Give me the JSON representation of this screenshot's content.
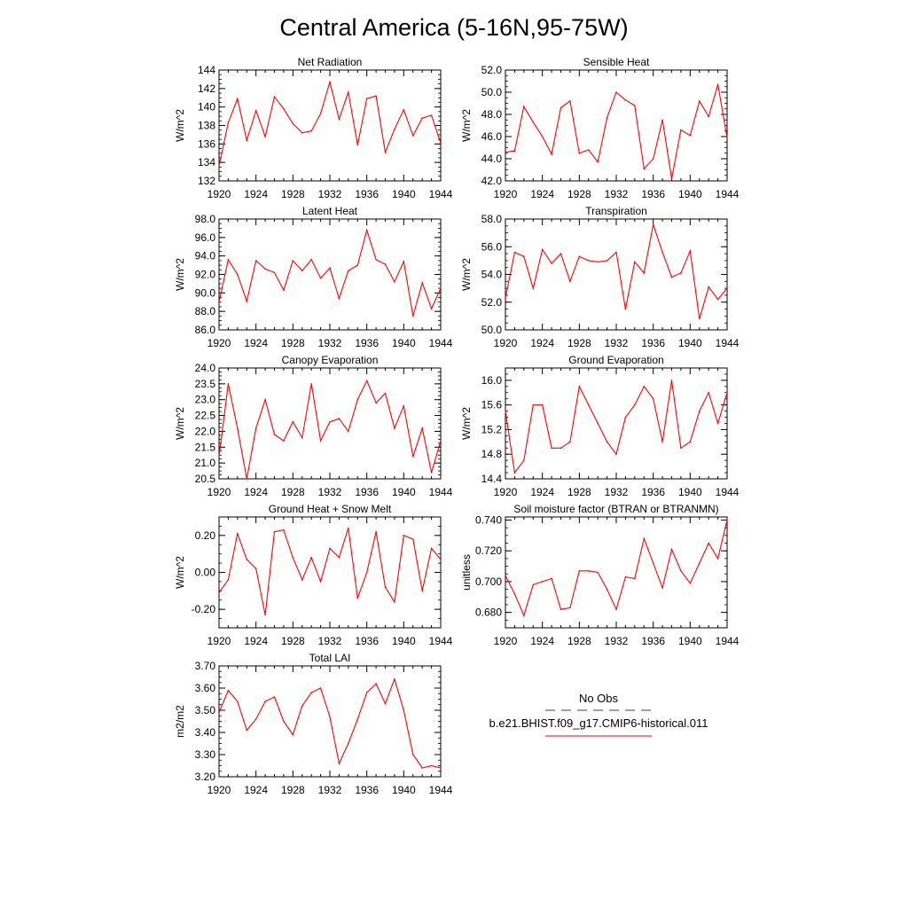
{
  "figure": {
    "title": "Central America (5-16N,95-75W)",
    "xticks": [
      "1920",
      "1924",
      "1928",
      "1932",
      "1936",
      "1940",
      "1944"
    ],
    "series_color": "#ff0000",
    "obs_color": "#3333aa"
  },
  "legend": {
    "obs_label": "No Obs",
    "model_label": "b.e21.BHIST.f09_g17.CMIP6-historical.011"
  },
  "chart_data": [
    {
      "type": "line",
      "title": "Net Radiation",
      "ylabel": "W/m^2",
      "xlim": [
        1920,
        1944
      ],
      "ylim": [
        132,
        144
      ],
      "yticks": [
        "132",
        "134",
        "136",
        "138",
        "140",
        "142",
        "144"
      ],
      "x": [
        1920,
        1921,
        1922,
        1923,
        1924,
        1925,
        1926,
        1927,
        1928,
        1929,
        1930,
        1931,
        1932,
        1933,
        1934,
        1935,
        1936,
        1937,
        1938,
        1939,
        1940,
        1941,
        1942,
        1943,
        1944
      ],
      "values": [
        133.6,
        138.3,
        140.9,
        136.4,
        139.6,
        136.8,
        141.1,
        139.8,
        138.2,
        137.2,
        137.4,
        139.3,
        142.7,
        138.7,
        141.6,
        135.9,
        140.9,
        141.2,
        135.1,
        137.6,
        139.7,
        136.9,
        138.8,
        139.1,
        136.1
      ]
    },
    {
      "type": "line",
      "title": "Sensible Heat",
      "ylabel": "W/m^2",
      "xlim": [
        1920,
        1944
      ],
      "ylim": [
        42,
        52
      ],
      "yticks": [
        "42.0",
        "44.0",
        "46.0",
        "48.0",
        "50.0",
        "52.0"
      ],
      "x": [
        1920,
        1921,
        1922,
        1923,
        1924,
        1925,
        1926,
        1927,
        1928,
        1929,
        1930,
        1931,
        1932,
        1933,
        1934,
        1935,
        1936,
        1937,
        1938,
        1939,
        1940,
        1941,
        1942,
        1943,
        1944
      ],
      "values": [
        44.6,
        44.7,
        48.7,
        47.3,
        46.0,
        44.4,
        48.6,
        49.2,
        44.5,
        44.8,
        43.7,
        47.7,
        50.0,
        49.3,
        48.8,
        43.1,
        44.0,
        47.5,
        42.2,
        46.6,
        46.1,
        49.2,
        47.8,
        50.7,
        45.9
      ]
    },
    {
      "type": "line",
      "title": "Latent Heat",
      "ylabel": "W/m^2",
      "xlim": [
        1920,
        1944
      ],
      "ylim": [
        86,
        98
      ],
      "yticks": [
        "86.0",
        "88.0",
        "90.0",
        "92.0",
        "94.0",
        "96.0",
        "98.0"
      ],
      "x": [
        1920,
        1921,
        1922,
        1923,
        1924,
        1925,
        1926,
        1927,
        1928,
        1929,
        1930,
        1931,
        1932,
        1933,
        1934,
        1935,
        1936,
        1937,
        1938,
        1939,
        1940,
        1941,
        1942,
        1943,
        1944
      ],
      "values": [
        89.0,
        93.6,
        92.0,
        89.1,
        93.5,
        92.6,
        92.2,
        90.3,
        93.5,
        92.4,
        93.6,
        91.6,
        92.7,
        89.4,
        92.4,
        93.0,
        96.8,
        93.6,
        93.1,
        91.2,
        93.4,
        87.5,
        91.1,
        88.3,
        90.5
      ]
    },
    {
      "type": "line",
      "title": "Transpiration",
      "ylabel": "W/m^2",
      "xlim": [
        1920,
        1944
      ],
      "ylim": [
        50,
        58
      ],
      "yticks": [
        "50.0",
        "52.0",
        "54.0",
        "56.0",
        "58.0"
      ],
      "x": [
        1920,
        1921,
        1922,
        1923,
        1924,
        1925,
        1926,
        1927,
        1928,
        1929,
        1930,
        1931,
        1932,
        1933,
        1934,
        1935,
        1936,
        1937,
        1938,
        1939,
        1940,
        1941,
        1942,
        1943,
        1944
      ],
      "values": [
        52.3,
        55.6,
        55.3,
        53.0,
        55.8,
        54.8,
        55.5,
        53.5,
        55.3,
        55.0,
        54.9,
        55.0,
        55.6,
        51.5,
        54.9,
        54.1,
        57.6,
        55.6,
        53.8,
        54.1,
        55.7,
        50.8,
        53.1,
        52.2,
        53.0
      ]
    },
    {
      "type": "line",
      "title": "Canopy Evaporation",
      "ylabel": "W/m^2",
      "xlim": [
        1920,
        1944
      ],
      "ylim": [
        20.5,
        24
      ],
      "yticks": [
        "20.5",
        "21.0",
        "21.5",
        "22.0",
        "22.5",
        "23.0",
        "23.5",
        "24.0"
      ],
      "x": [
        1920,
        1921,
        1922,
        1923,
        1924,
        1925,
        1926,
        1927,
        1928,
        1929,
        1930,
        1931,
        1932,
        1933,
        1934,
        1935,
        1936,
        1937,
        1938,
        1939,
        1940,
        1941,
        1942,
        1943,
        1944
      ],
      "values": [
        21.2,
        23.5,
        22.1,
        20.5,
        22.1,
        23.0,
        21.9,
        21.7,
        22.3,
        21.8,
        23.5,
        21.7,
        22.3,
        22.4,
        22.0,
        23.0,
        23.6,
        22.9,
        23.2,
        22.1,
        22.8,
        21.2,
        22.1,
        20.7,
        21.7
      ]
    },
    {
      "type": "line",
      "title": "Ground Evaporation",
      "ylabel": "W/m^2",
      "xlim": [
        1920,
        1944
      ],
      "ylim": [
        14.4,
        16.2
      ],
      "yticks": [
        "14.4",
        "14.8",
        "15.2",
        "15.6",
        "16.0"
      ],
      "ytick_values": [
        14.4,
        14.8,
        15.2,
        15.6,
        16.0
      ],
      "x": [
        1920,
        1921,
        1922,
        1923,
        1924,
        1925,
        1926,
        1927,
        1928,
        1929,
        1930,
        1931,
        1932,
        1933,
        1934,
        1935,
        1936,
        1937,
        1938,
        1939,
        1940,
        1941,
        1942,
        1943,
        1944
      ],
      "values": [
        15.5,
        14.5,
        14.7,
        15.6,
        15.6,
        14.9,
        14.9,
        15.0,
        15.9,
        15.6,
        15.3,
        15.0,
        14.8,
        15.4,
        15.6,
        15.9,
        15.7,
        15.0,
        16.0,
        14.9,
        15.0,
        15.5,
        15.8,
        15.3,
        15.8
      ]
    },
    {
      "type": "line",
      "title": "Ground Heat + Snow Melt",
      "ylabel": "W/m^2",
      "xlim": [
        1920,
        1944
      ],
      "ylim": [
        -0.3,
        0.3
      ],
      "yticks": [
        "-0.20",
        "0.00",
        "0.20"
      ],
      "ytick_values": [
        -0.2,
        0.0,
        0.2
      ],
      "x": [
        1920,
        1921,
        1922,
        1923,
        1924,
        1925,
        1926,
        1927,
        1928,
        1929,
        1930,
        1931,
        1932,
        1933,
        1934,
        1935,
        1936,
        1937,
        1938,
        1939,
        1940,
        1941,
        1942,
        1943,
        1944
      ],
      "values": [
        -0.11,
        -0.04,
        0.21,
        0.07,
        0.02,
        -0.23,
        0.22,
        0.23,
        0.08,
        -0.04,
        0.08,
        -0.05,
        0.13,
        0.08,
        0.24,
        -0.14,
        0.0,
        0.22,
        -0.08,
        -0.16,
        0.2,
        0.18,
        -0.1,
        0.13,
        0.07
      ]
    },
    {
      "type": "line",
      "title": "Soil moisture factor (BTRAN or BTRANMN)",
      "ylabel": "unitless",
      "xlim": [
        1920,
        1944
      ],
      "ylim": [
        0.67,
        0.742
      ],
      "yticks": [
        "0.680",
        "0.700",
        "0.720",
        "0.740"
      ],
      "ytick_values": [
        0.68,
        0.7,
        0.72,
        0.74
      ],
      "x": [
        1920,
        1921,
        1922,
        1923,
        1924,
        1925,
        1926,
        1927,
        1928,
        1929,
        1930,
        1931,
        1932,
        1933,
        1934,
        1935,
        1936,
        1937,
        1938,
        1939,
        1940,
        1941,
        1942,
        1943,
        1944
      ],
      "values": [
        0.704,
        0.692,
        0.678,
        0.698,
        0.7,
        0.702,
        0.682,
        0.683,
        0.707,
        0.707,
        0.706,
        0.695,
        0.682,
        0.703,
        0.702,
        0.728,
        0.712,
        0.696,
        0.721,
        0.707,
        0.699,
        0.712,
        0.725,
        0.715,
        0.74
      ]
    },
    {
      "type": "line",
      "title": "Total LAI",
      "ylabel": "m2/m2",
      "xlim": [
        1920,
        1944
      ],
      "ylim": [
        3.2,
        3.7
      ],
      "yticks": [
        "3.20",
        "3.30",
        "3.40",
        "3.50",
        "3.60",
        "3.70"
      ],
      "x": [
        1920,
        1921,
        1922,
        1923,
        1924,
        1925,
        1926,
        1927,
        1928,
        1929,
        1930,
        1931,
        1932,
        1933,
        1934,
        1935,
        1936,
        1937,
        1938,
        1939,
        1940,
        1941,
        1942,
        1943,
        1944
      ],
      "values": [
        3.49,
        3.59,
        3.54,
        3.41,
        3.46,
        3.54,
        3.56,
        3.45,
        3.39,
        3.52,
        3.58,
        3.6,
        3.47,
        3.26,
        3.35,
        3.46,
        3.58,
        3.62,
        3.53,
        3.64,
        3.5,
        3.3,
        3.24,
        3.25,
        3.24
      ]
    }
  ]
}
